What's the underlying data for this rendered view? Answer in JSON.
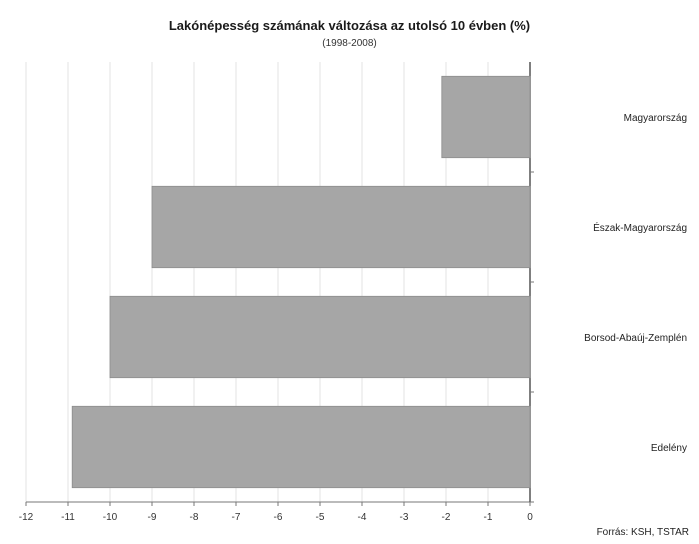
{
  "chart_data": {
    "type": "bar",
    "orientation": "horizontal",
    "title": "Lakónépesség számának változása az utolsó 10 évben (%)",
    "subtitle": "(1998-2008)",
    "categories": [
      "Magyarország",
      "Észak-Magyarország",
      "Borsod-Abaúj-Zemplén",
      "Edelény"
    ],
    "values": [
      -2.1,
      -9.0,
      -10.0,
      -10.9
    ],
    "xlim": [
      -12,
      0
    ],
    "xticks": [
      "-12",
      "-11",
      "-10",
      "-9",
      "-8",
      "-7",
      "-6",
      "-5",
      "-4",
      "-3",
      "-2",
      "-1",
      "0"
    ],
    "grid": true,
    "bar_color": "#a6a6a6",
    "source": "Forrás: KSH, TSTAR"
  }
}
